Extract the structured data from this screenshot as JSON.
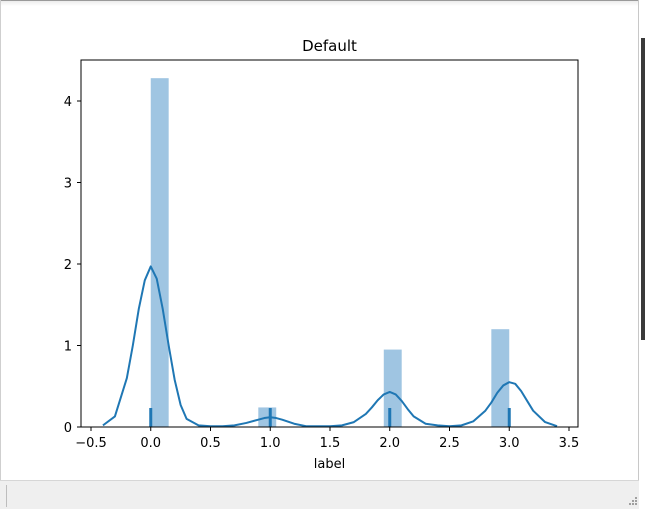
{
  "chart_data": {
    "type": "bar",
    "title": "Default",
    "xlabel": "label",
    "ylabel": "",
    "xlim": [
      -0.5,
      3.5
    ],
    "ylim": [
      0,
      4.5
    ],
    "x_ticks": [
      -0.5,
      0.0,
      0.5,
      1.0,
      1.5,
      2.0,
      2.5,
      3.0,
      3.5
    ],
    "x_tick_labels": [
      "−0.5",
      "0.0",
      "0.5",
      "1.0",
      "1.5",
      "2.0",
      "2.5",
      "3.0",
      "3.5"
    ],
    "y_ticks": [
      0,
      1,
      2,
      3,
      4
    ],
    "y_tick_labels": [
      "0",
      "1",
      "2",
      "3",
      "4"
    ],
    "grid": false,
    "legend": "none",
    "histogram": {
      "bin_width": 0.15,
      "bins": [
        {
          "x_start": 0.0,
          "x_end": 0.15,
          "density": 4.28
        },
        {
          "x_start": 0.9,
          "x_end": 1.05,
          "density": 0.24
        },
        {
          "x_start": 1.95,
          "x_end": 2.1,
          "density": 0.95
        },
        {
          "x_start": 2.85,
          "x_end": 3.0,
          "density": 1.2
        }
      ],
      "color": "#9fc5e2"
    },
    "kde": {
      "color": "#1f77b4",
      "x": [
        -0.4,
        -0.3,
        -0.2,
        -0.15,
        -0.1,
        -0.05,
        0.0,
        0.05,
        0.1,
        0.15,
        0.2,
        0.25,
        0.3,
        0.4,
        0.5,
        0.6,
        0.7,
        0.8,
        0.9,
        0.95,
        1.0,
        1.05,
        1.1,
        1.2,
        1.3,
        1.4,
        1.5,
        1.6,
        1.7,
        1.8,
        1.85,
        1.9,
        1.95,
        2.0,
        2.05,
        2.1,
        2.15,
        2.2,
        2.3,
        2.4,
        2.5,
        2.6,
        2.7,
        2.8,
        2.85,
        2.9,
        2.95,
        3.0,
        3.05,
        3.1,
        3.15,
        3.2,
        3.3,
        3.4
      ],
      "y": [
        0.02,
        0.13,
        0.6,
        1.0,
        1.45,
        1.8,
        1.97,
        1.82,
        1.45,
        1.0,
        0.58,
        0.27,
        0.1,
        0.02,
        0.01,
        0.01,
        0.02,
        0.05,
        0.09,
        0.11,
        0.12,
        0.11,
        0.09,
        0.04,
        0.01,
        0.01,
        0.01,
        0.02,
        0.06,
        0.16,
        0.24,
        0.33,
        0.4,
        0.43,
        0.4,
        0.32,
        0.22,
        0.13,
        0.04,
        0.02,
        0.01,
        0.02,
        0.07,
        0.2,
        0.3,
        0.42,
        0.51,
        0.55,
        0.53,
        0.44,
        0.32,
        0.2,
        0.06,
        0.01
      ]
    },
    "rug": {
      "color": "#1f77b4",
      "x": [
        0.0,
        1.0,
        2.0,
        3.0
      ]
    }
  }
}
